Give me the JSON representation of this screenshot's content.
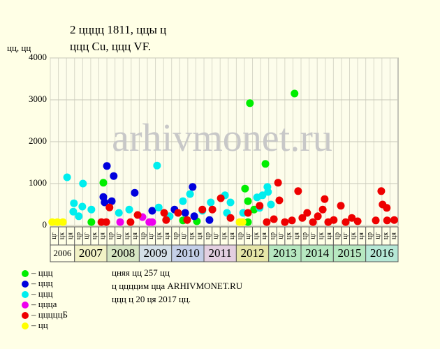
{
  "chart_data": {
    "type": "scatter",
    "title": "2 цццц 1811, ццы ц",
    "subtitle": "ццц Cu, ццц VF.",
    "y_label": "цц, цц",
    "watermark": "arhivmonet.ru",
    "xlim": [
      2006.25,
      2017
    ],
    "ylim": [
      0,
      4000
    ],
    "yticks": [
      0,
      1000,
      2000,
      3000,
      4000
    ],
    "grid": true,
    "years": [
      2006,
      2007,
      2008,
      2009,
      2010,
      2011,
      2012,
      2013,
      2014,
      2015,
      2016
    ],
    "year_colors": [
      "#ffffe6",
      "#f3f3c6",
      "#d6e6c3",
      "#d4e0e8",
      "#c4cfe8",
      "#e3cfe0",
      "#e6e6a8",
      "#b6e8c0",
      "#b6e8c0",
      "#b6e8c0",
      "#b6e8d6"
    ],
    "quarter_labels": [
      "цг",
      "цк",
      "ця",
      "цр",
      "цг",
      "цк",
      "ця",
      "цр",
      "цг",
      "цк",
      "ця",
      "цр",
      "цг",
      "цк",
      "ця",
      "цр",
      "цг",
      "цк",
      "ця",
      "цр",
      "цг",
      "цк",
      "ця",
      "цр",
      "цг",
      "цк",
      "ця",
      "цр",
      "цг",
      "цк",
      "ця",
      "цр",
      "цг",
      "цк",
      "ця",
      "цр",
      "цг",
      "цк",
      "ця",
      "цр",
      "цг",
      "цк",
      "ця"
    ],
    "series": [
      {
        "name": "– ццц",
        "color": "#00ee00",
        "x": [
          2007.89,
          2007.52,
          2012.42,
          2012.9,
          2012.27,
          2012.36,
          2013.8,
          2010.78,
          2010.35,
          2012.36,
          2012.55
        ],
        "values": [
          1020,
          80,
          2920,
          1470,
          880,
          580,
          3150,
          100,
          120,
          80,
          380
        ]
      },
      {
        "name": "– ццц",
        "color": "#0000dd",
        "x": [
          2008.0,
          2008.21,
          2007.89,
          2007.93,
          2008.15,
          2008.86,
          2010.65,
          2009.4,
          2010.09,
          2010.42,
          2010.7,
          2011.17
        ],
        "values": [
          1420,
          1180,
          680,
          550,
          580,
          780,
          920,
          350,
          380,
          300,
          220,
          130
        ]
      },
      {
        "name": "– ццц",
        "color": "#00eeee",
        "x": [
          2006.77,
          2006.98,
          2007.26,
          2006.96,
          2007.13,
          2007.24,
          2007.52,
          2008.37,
          2008.69,
          2009.55,
          2009.6,
          2010.35,
          2010.57,
          2010.95,
          2011.21,
          2011.65,
          2011.82,
          2012.64,
          2012.81,
          2012.96,
          2012.98,
          2013.07,
          2012.72,
          2009.94,
          2012.21,
          2011.71
        ],
        "values": [
          1150,
          530,
          1000,
          330,
          220,
          450,
          380,
          300,
          380,
          1430,
          430,
          580,
          750,
          350,
          550,
          720,
          550,
          670,
          720,
          920,
          800,
          500,
          420,
          220,
          300,
          300
        ]
      },
      {
        "name": "– ццца",
        "color": "#ee00ee",
        "x": [
          2008.41,
          2009.1,
          2009.31,
          2009.4
        ],
        "values": [
          80,
          200,
          80,
          80
        ]
      },
      {
        "name": "– цццццБ",
        "color": "#ee0000",
        "x": [
          2007.83,
          2007.98,
          2008.08,
          2008.73,
          2008.95,
          2009.77,
          2009.83,
          2010.2,
          2010.48,
          2010.95,
          2011.26,
          2011.52,
          2011.82,
          2012.36,
          2012.72,
          2013.29,
          2013.33,
          2012.94,
          2013.16,
          2013.5,
          2013.72,
          2013.91,
          2014.04,
          2014.19,
          2014.37,
          2014.52,
          2014.67,
          2014.73,
          2014.84,
          2015.01,
          2015.23,
          2015.38,
          2015.57,
          2015.75,
          2016.31,
          2016.48,
          2016.52,
          2016.65,
          2016.66,
          2016.88
        ],
        "values": [
          80,
          80,
          430,
          80,
          250,
          300,
          130,
          300,
          130,
          380,
          380,
          650,
          180,
          300,
          470,
          1020,
          600,
          80,
          150,
          80,
          120,
          820,
          180,
          300,
          80,
          220,
          380,
          630,
          80,
          130,
          470,
          80,
          180,
          100,
          120,
          820,
          500,
          420,
          120,
          130
        ]
      },
      {
        "name": "– цц",
        "color": "#ffff00",
        "x": [
          2006.31,
          2006.47,
          2006.64,
          2012.1,
          2012.19
        ],
        "values": [
          80,
          80,
          80,
          80,
          80
        ]
      }
    ],
    "notes": [
      "цняя цц 257 цц",
      "ц ццццим цца ARHIVMONET.RU",
      "ццц ц 20 ця 2017 цц."
    ]
  }
}
